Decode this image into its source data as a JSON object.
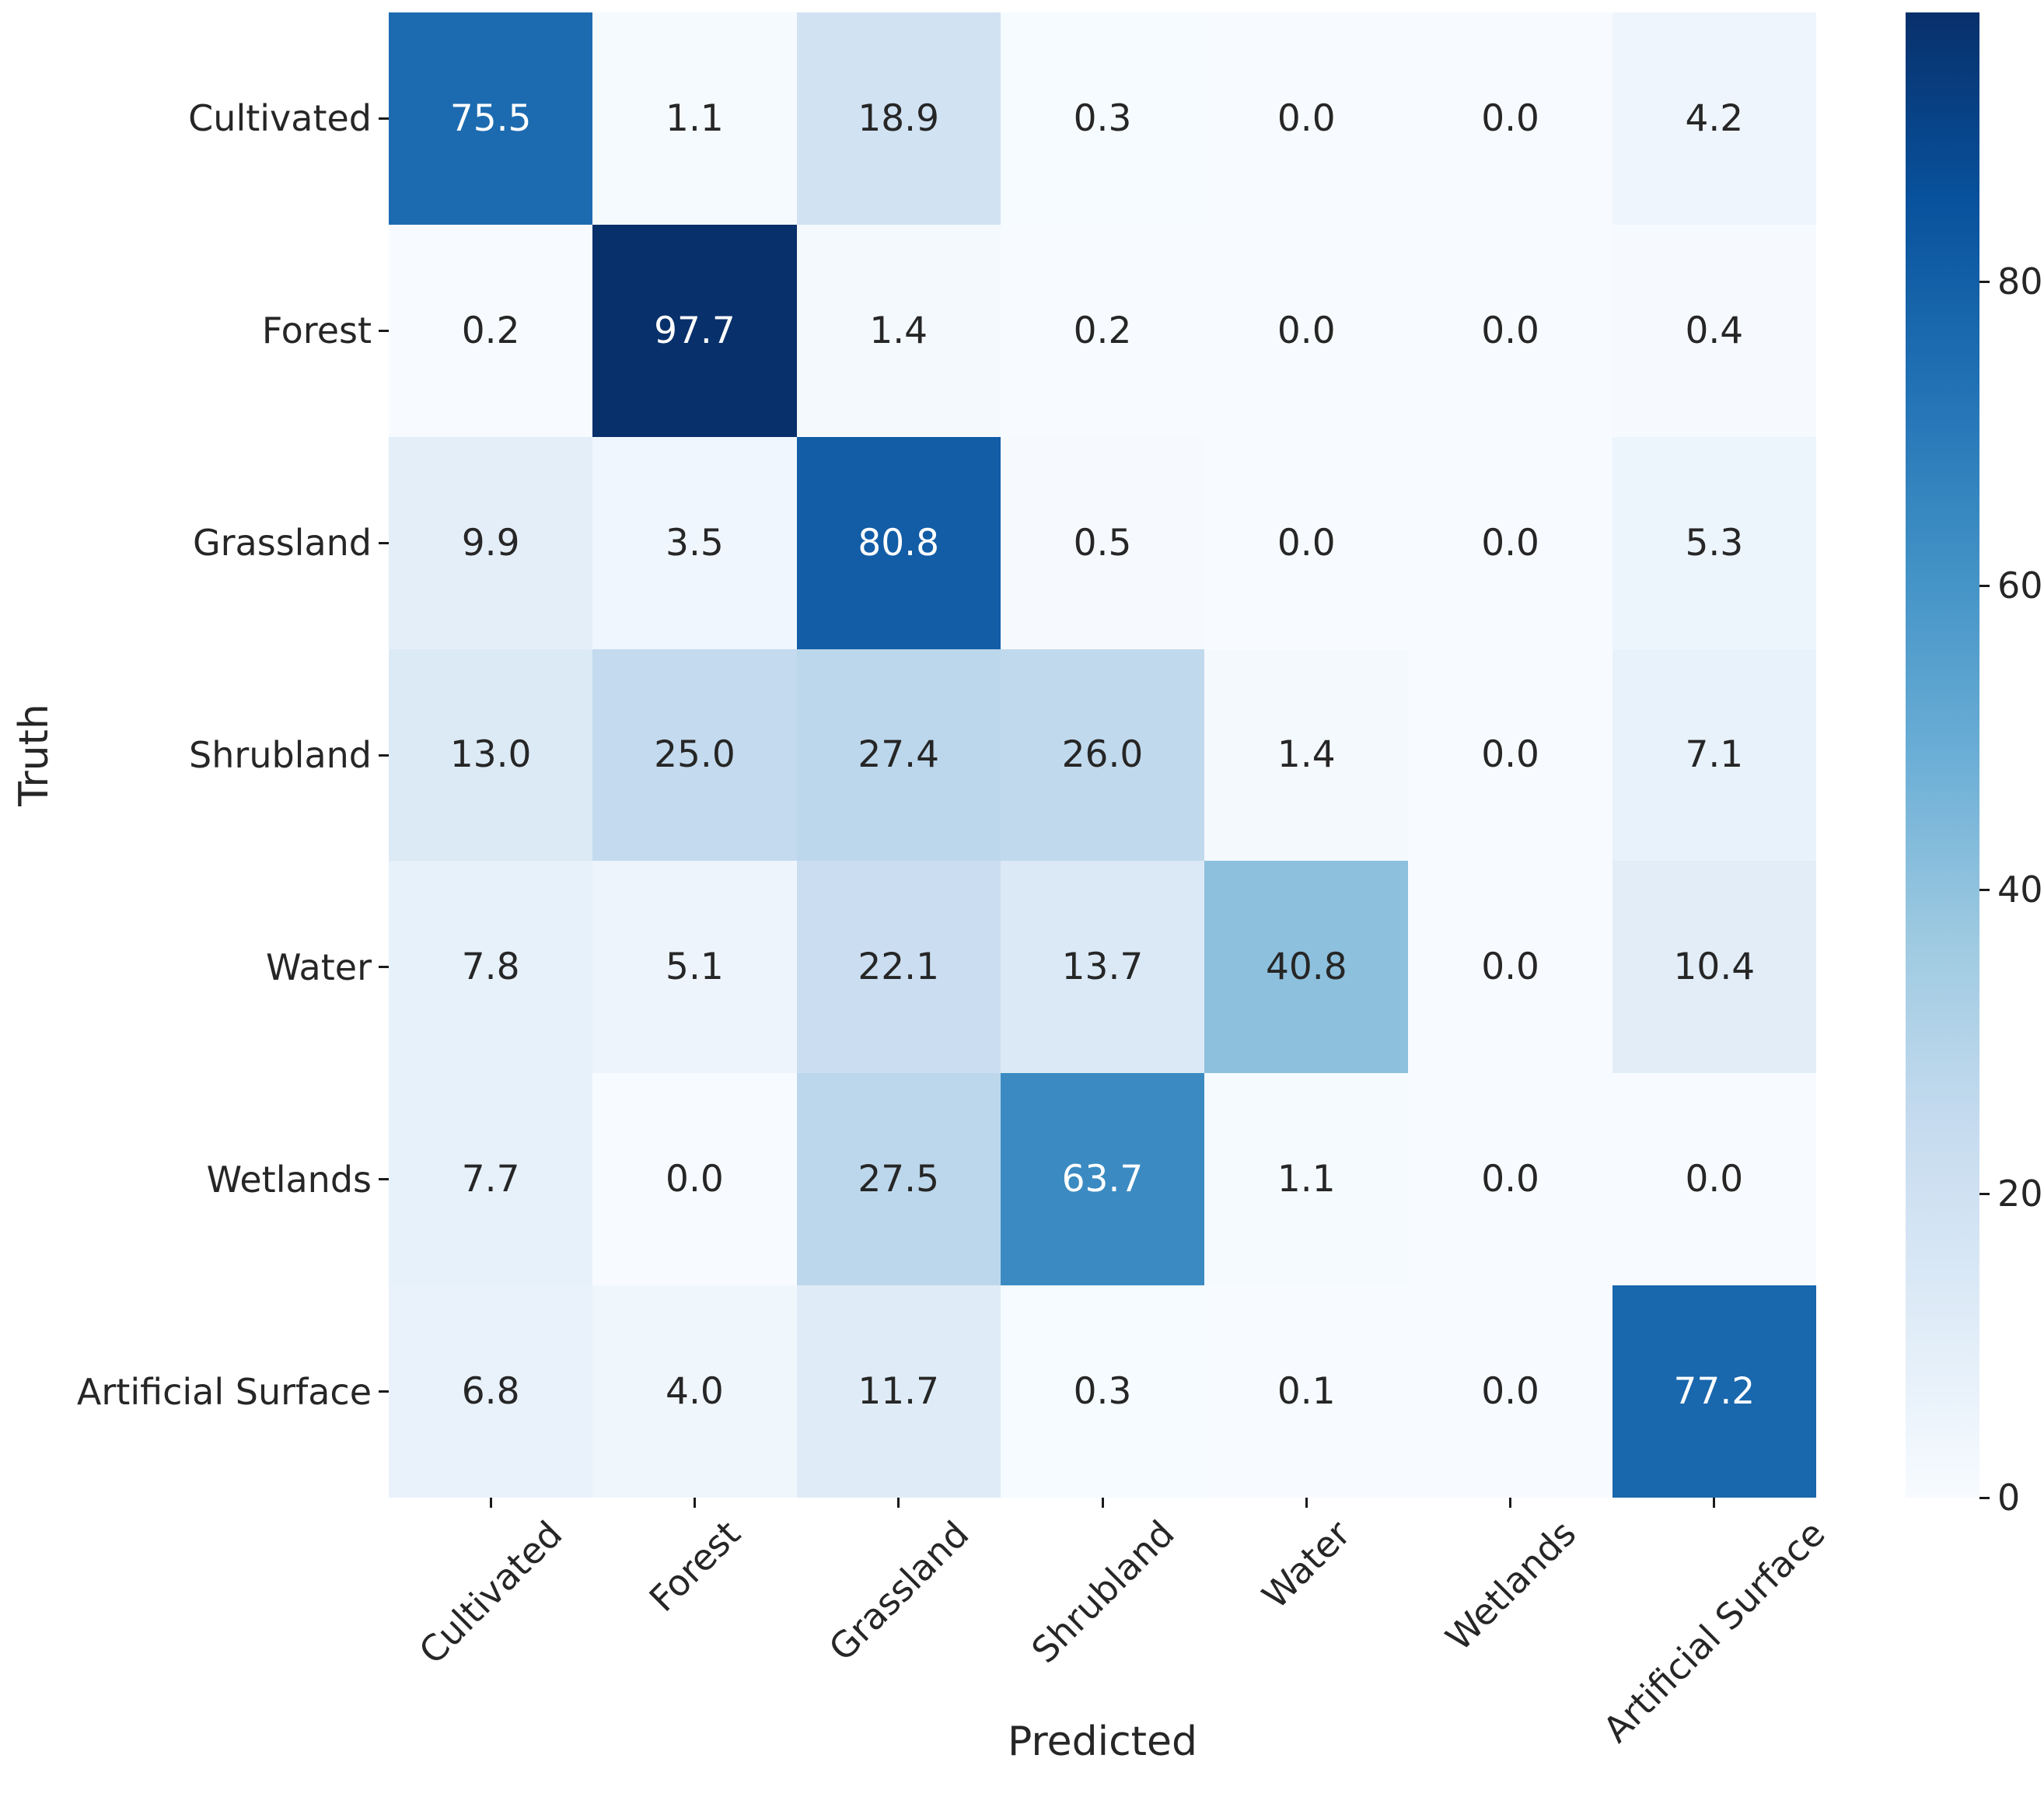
{
  "chart_data": {
    "type": "heatmap",
    "title": "",
    "xlabel": "Predicted",
    "ylabel": "Truth",
    "x_categories": [
      "Cultivated",
      "Forest",
      "Grassland",
      "Shrubland",
      "Water",
      "Wetlands",
      "Artificial Surface"
    ],
    "y_categories": [
      "Cultivated",
      "Forest",
      "Grassland",
      "Shrubland",
      "Water",
      "Wetlands",
      "Artificial Surface"
    ],
    "matrix": [
      [
        75.5,
        1.1,
        18.9,
        0.3,
        0.0,
        0.0,
        4.2
      ],
      [
        0.2,
        97.7,
        1.4,
        0.2,
        0.0,
        0.0,
        0.4
      ],
      [
        9.9,
        3.5,
        80.8,
        0.5,
        0.0,
        0.0,
        5.3
      ],
      [
        13.0,
        25.0,
        27.4,
        26.0,
        1.4,
        0.0,
        7.1
      ],
      [
        7.8,
        5.1,
        22.1,
        13.7,
        40.8,
        0.0,
        10.4
      ],
      [
        7.7,
        0.0,
        27.5,
        63.7,
        1.1,
        0.0,
        0.0
      ],
      [
        6.8,
        4.0,
        11.7,
        0.3,
        0.1,
        0.0,
        77.2
      ]
    ],
    "value_decimals": 1,
    "colormap": "Blues",
    "colormap_stops": [
      "#f7fbff",
      "#deebf7",
      "#c6dbef",
      "#9ecae1",
      "#6baed6",
      "#4292c6",
      "#2171b5",
      "#08519c",
      "#08306b"
    ],
    "vmin": 0,
    "vmax": 97.7,
    "colorbar_ticks": [
      0,
      20,
      40,
      60,
      80
    ],
    "colorbar_position": "right",
    "annotation_color_light": "#ffffff",
    "annotation_color_dark": "#262626",
    "axis_text_color": "#262626",
    "grid": false
  }
}
